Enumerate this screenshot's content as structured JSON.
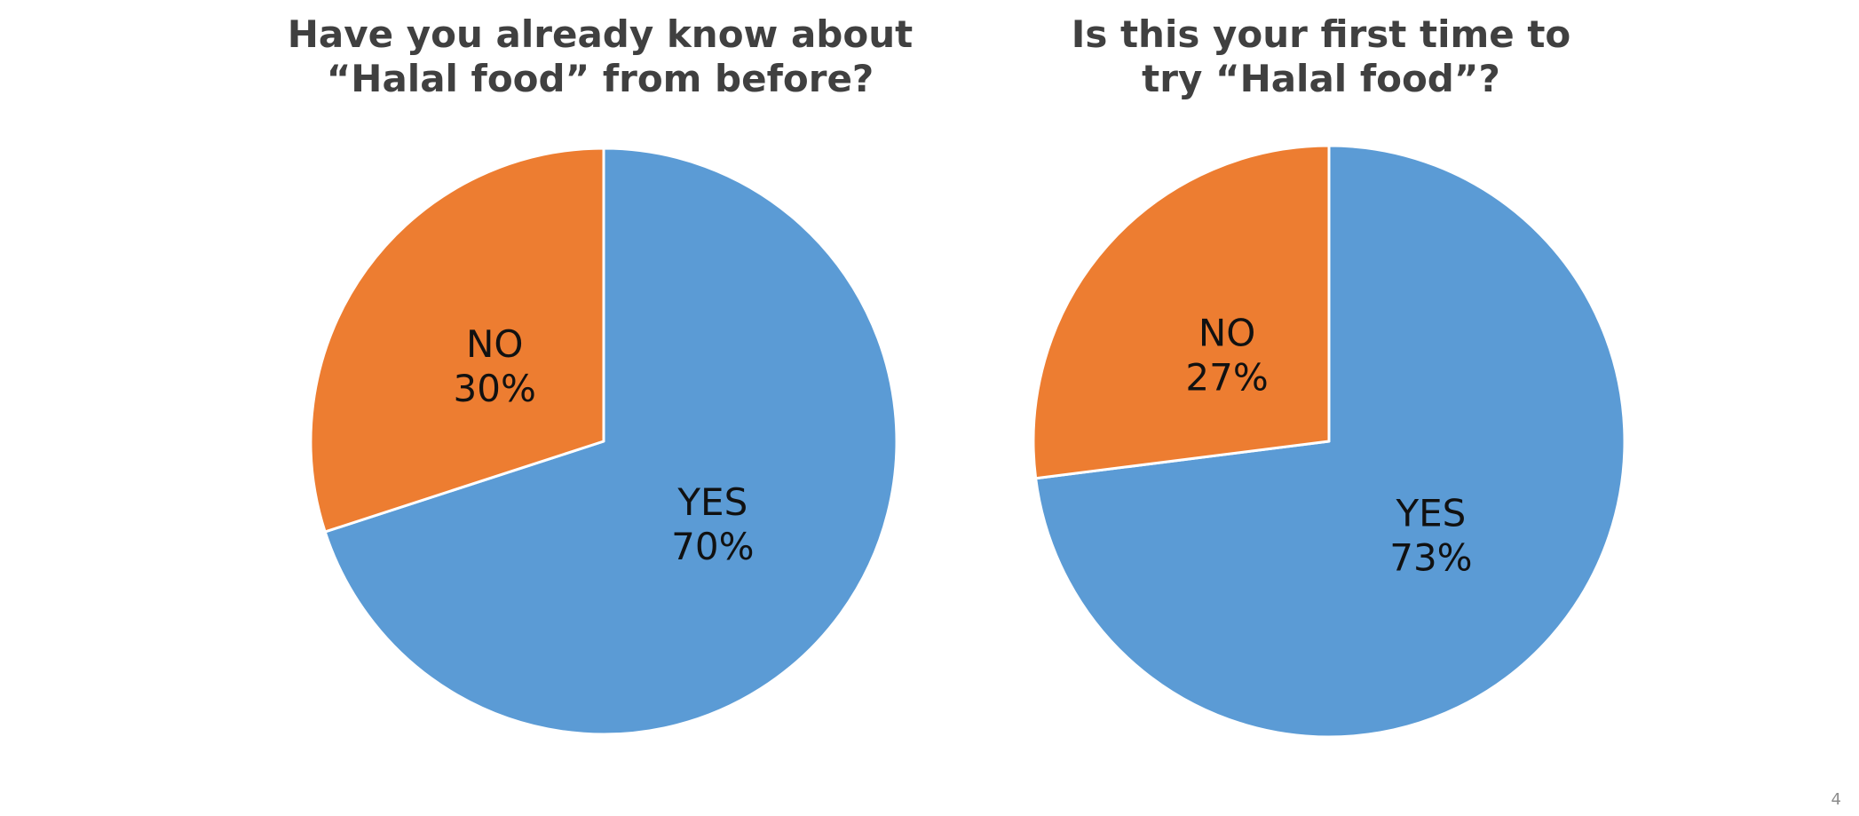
{
  "chart_data": [
    {
      "type": "pie",
      "title_lines": [
        "Have you already know about",
        "“Halal food” from before?"
      ],
      "slices": [
        {
          "label": "YES",
          "value": 70,
          "value_label": "70%",
          "color": "#5B9BD5"
        },
        {
          "label": "NO",
          "value": 30,
          "value_label": "30%",
          "color": "#ED7D31"
        }
      ]
    },
    {
      "type": "pie",
      "title_lines": [
        "Is this your first time to",
        "try “Halal food”?"
      ],
      "slices": [
        {
          "label": "YES",
          "value": 73,
          "value_label": "73%",
          "color": "#5B9BD5"
        },
        {
          "label": "NO",
          "value": 27,
          "value_label": "27%",
          "color": "#ED7D31"
        }
      ]
    }
  ],
  "page_number": "4"
}
